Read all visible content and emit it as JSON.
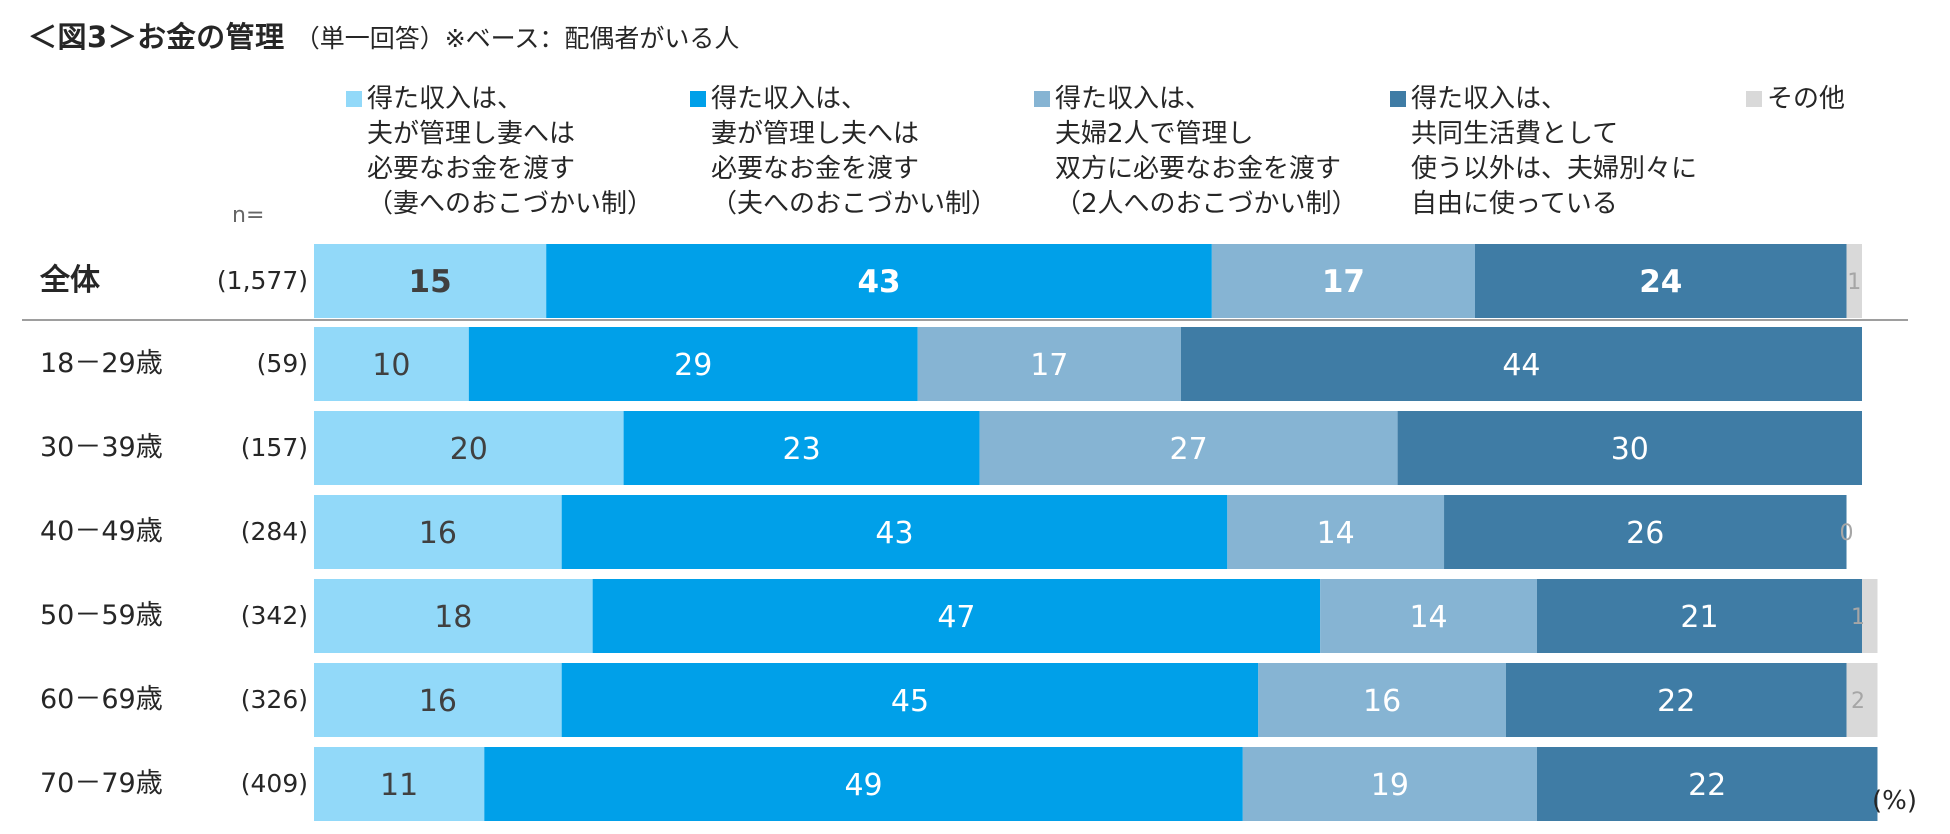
{
  "title": {
    "main": "＜図3＞お金の管理",
    "sub": "（単一回答）※ベース：配偶者がいる人"
  },
  "n_header": "n=",
  "unit_label": "(%)",
  "colors": {
    "c1": "#92D9F9",
    "c2": "#00A0E9",
    "c3": "#86B4D3",
    "c4": "#3F7CA5",
    "c5": "#D9D9D9",
    "divider": "#9e9e9e"
  },
  "legend": [
    {
      "lines": [
        "得た収入は、",
        "夫が管理し妻へは",
        "必要なお金を渡す",
        "（妻へのおこづかい制）"
      ]
    },
    {
      "lines": [
        "得た収入は、",
        "妻が管理し夫へは",
        "必要なお金を渡す",
        "（夫へのおこづかい制）"
      ]
    },
    {
      "lines": [
        "得た収入は、",
        "夫婦2人で管理し",
        "双方に必要なお金を渡す",
        "（2人へのおこづかい制）"
      ]
    },
    {
      "lines": [
        "得た収入は、",
        "共同生活費として",
        "使う以外は、夫婦別々に",
        "自由に使っている"
      ]
    },
    {
      "lines": [
        "その他"
      ]
    }
  ],
  "chart_data": {
    "type": "bar",
    "orientation": "horizontal",
    "stacked": true,
    "title": "＜図3＞お金の管理",
    "xlim": [
      0,
      100
    ],
    "categories": [
      "全体",
      "18－29歳",
      "30－39歳",
      "40－49歳",
      "50－59歳",
      "60－69歳",
      "70－79歳"
    ],
    "n": [
      "(1,577)",
      "(59)",
      "(157)",
      "(284)",
      "(342)",
      "(326)",
      "(409)"
    ],
    "series": [
      {
        "name": "得た収入は、夫が管理し妻へは必要なお金を渡す（妻へのおこづかい制）",
        "values": [
          15,
          10,
          20,
          16,
          18,
          16,
          11
        ]
      },
      {
        "name": "得た収入は、妻が管理し夫へは必要なお金を渡す（夫へのおこづかい制）",
        "values": [
          43,
          29,
          23,
          43,
          47,
          45,
          49
        ]
      },
      {
        "name": "得た収入は、夫婦2人で管理し双方に必要なお金を渡す（2人へのおこづかい制）",
        "values": [
          17,
          17,
          27,
          14,
          14,
          16,
          19
        ]
      },
      {
        "name": "得た収入は、共同生活費として使う以外は、夫婦別々に自由に使っている",
        "values": [
          24,
          44,
          30,
          26,
          21,
          22,
          22
        ]
      },
      {
        "name": "その他",
        "values": [
          1,
          0,
          0,
          0,
          1,
          2,
          0
        ]
      }
    ],
    "legend_position": "top"
  }
}
